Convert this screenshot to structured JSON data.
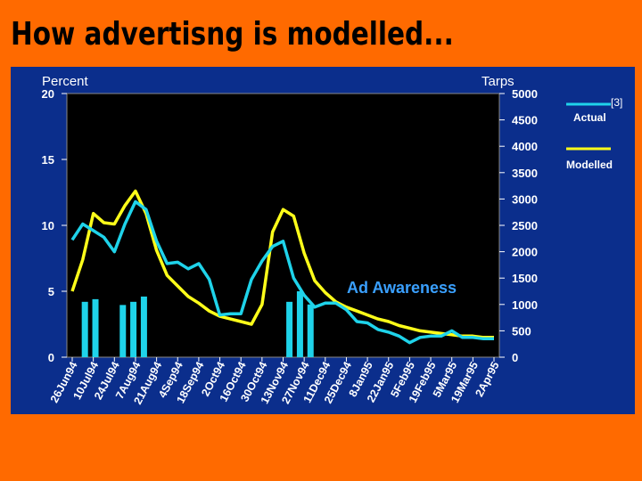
{
  "title": "How advertisng is modelled...",
  "colors": {
    "background": "#ff6a00",
    "panel": "#0b2e8c",
    "plot": "#000000",
    "actual": "#1fd3ea",
    "modelled": "#ffff1a",
    "bars": "#1fd3ea",
    "annotation": "#3aa0ff"
  },
  "chart_data": {
    "type": "line",
    "left_axis": {
      "label": "Percent",
      "ticks": [
        "0",
        "5",
        "10",
        "15",
        "20"
      ],
      "range": [
        0,
        20
      ]
    },
    "right_axis": {
      "label": "Tarps",
      "ticks": [
        "0",
        "500",
        "1000",
        "1500",
        "2000",
        "2500",
        "3000",
        "3500",
        "4000",
        "4500",
        "5000"
      ],
      "range": [
        0,
        5000
      ]
    },
    "x_ticks": [
      "26Jun94",
      "10Jul94",
      "24Jul94",
      "7Aug94",
      "21Aug94",
      "4Sep94",
      "18Sep94",
      "2Oct94",
      "16Oct94",
      "30Oct94",
      "13Nov94",
      "27Nov94",
      "11Dec94",
      "25Dec94",
      "8Jan95",
      "22Jan95",
      "5Feb95",
      "19Feb95",
      "5Mar95",
      "19Mar95",
      "2Apr95"
    ],
    "annotation": "Ad Awareness",
    "legend": {
      "ref": "[3]",
      "position": "right"
    },
    "series": [
      {
        "name": "Actual",
        "axis": "left",
        "x": [
          0,
          0.5,
          1,
          1.5,
          2,
          2.5,
          3,
          3.5,
          4,
          4.5,
          5,
          5.5,
          6,
          6.5,
          7,
          7.5,
          8,
          8.5,
          9,
          9.5,
          10,
          10.5,
          11,
          11.5,
          12,
          12.5,
          13,
          13.5,
          14,
          14.5,
          15,
          15.5,
          16,
          16.5,
          17,
          17.5,
          18,
          18.5,
          19,
          19.5,
          20
        ],
        "values": [
          8.9,
          10.1,
          9.6,
          9.1,
          8.0,
          10.1,
          11.8,
          11.2,
          8.8,
          7.1,
          7.2,
          6.7,
          7.1,
          5.9,
          3.2,
          3.3,
          3.3,
          5.9,
          7.3,
          8.4,
          8.8,
          6.0,
          4.7,
          3.8,
          4.1,
          4.1,
          3.6,
          2.7,
          2.6,
          2.1,
          1.9,
          1.6,
          1.1,
          1.5,
          1.6,
          1.6,
          2.0,
          1.5,
          1.5,
          1.4,
          1.4
        ]
      },
      {
        "name": "Modelled",
        "axis": "left",
        "x": [
          0,
          0.5,
          1,
          1.5,
          2,
          2.5,
          3,
          3.5,
          4,
          4.5,
          5,
          5.5,
          6,
          6.5,
          7,
          7.5,
          8,
          8.5,
          9,
          9.5,
          10,
          10.5,
          11,
          11.5,
          12,
          12.5,
          13,
          13.5,
          14,
          14.5,
          15,
          15.5,
          16,
          16.5,
          17,
          17.5,
          18,
          18.5,
          19,
          19.5,
          20
        ],
        "values": [
          5.0,
          7.4,
          10.9,
          10.2,
          10.1,
          11.5,
          12.6,
          10.9,
          8.1,
          6.2,
          5.4,
          4.6,
          4.1,
          3.5,
          3.1,
          2.9,
          2.7,
          2.5,
          4.0,
          9.5,
          11.2,
          10.7,
          7.9,
          5.8,
          4.9,
          4.2,
          3.8,
          3.5,
          3.2,
          2.9,
          2.7,
          2.4,
          2.2,
          2.0,
          1.9,
          1.8,
          1.7,
          1.6,
          1.6,
          1.5,
          1.5
        ]
      },
      {
        "name": "Tarps",
        "axis": "right",
        "type": "bar",
        "x": [
          0.6,
          1.1,
          2.4,
          2.9,
          3.4,
          10.3,
          10.8,
          11.3
        ],
        "values": [
          1050,
          1100,
          990,
          1050,
          1150,
          1050,
          1250,
          1000
        ]
      }
    ]
  }
}
